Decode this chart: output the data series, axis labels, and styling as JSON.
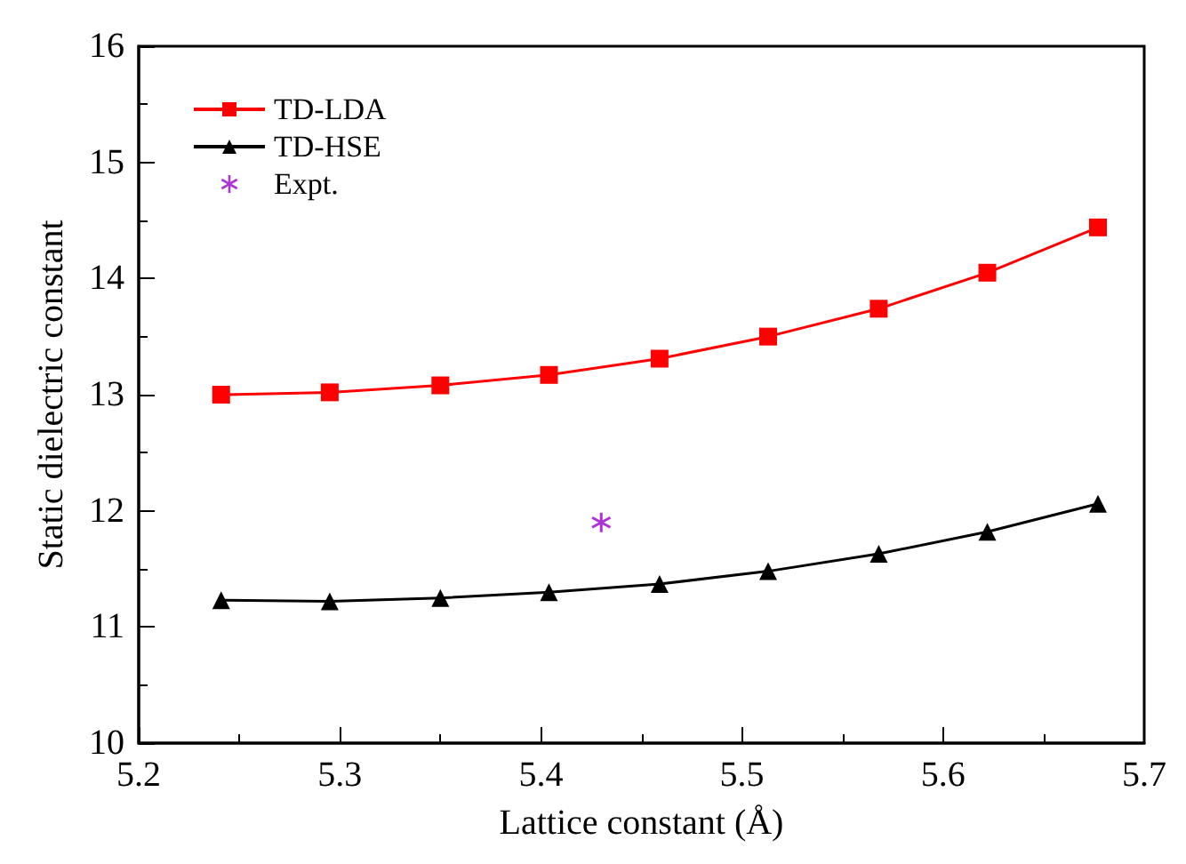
{
  "chart_data": {
    "type": "line",
    "xlabel": "Lattice constant (Å)",
    "ylabel": "Static dielectric constant",
    "x": [
      5.241,
      5.295,
      5.35,
      5.404,
      5.459,
      5.513,
      5.568,
      5.622,
      5.677
    ],
    "series": [
      {
        "name": "TD-LDA",
        "color": "#ff0000",
        "marker": "square",
        "values": [
          13.0,
          13.02,
          13.08,
          13.17,
          13.31,
          13.5,
          13.74,
          14.05,
          14.44
        ]
      },
      {
        "name": "TD-HSE",
        "color": "#000000",
        "marker": "triangle",
        "values": [
          11.23,
          11.22,
          11.25,
          11.3,
          11.37,
          11.48,
          11.63,
          11.82,
          12.06
        ]
      },
      {
        "name": "Expt.",
        "type": "scatter",
        "color": "#9900cc",
        "marker": "cross",
        "x": [
          5.43
        ],
        "values": [
          11.9
        ]
      }
    ],
    "xlim": [
      5.2,
      5.7
    ],
    "xticks": [
      5.2,
      5.3,
      5.4,
      5.5,
      5.6,
      5.7
    ],
    "ylim": [
      10,
      16
    ],
    "yticks": [
      10,
      11,
      12,
      13,
      14,
      15,
      16
    ],
    "legend": "top left",
    "grid": false
  }
}
